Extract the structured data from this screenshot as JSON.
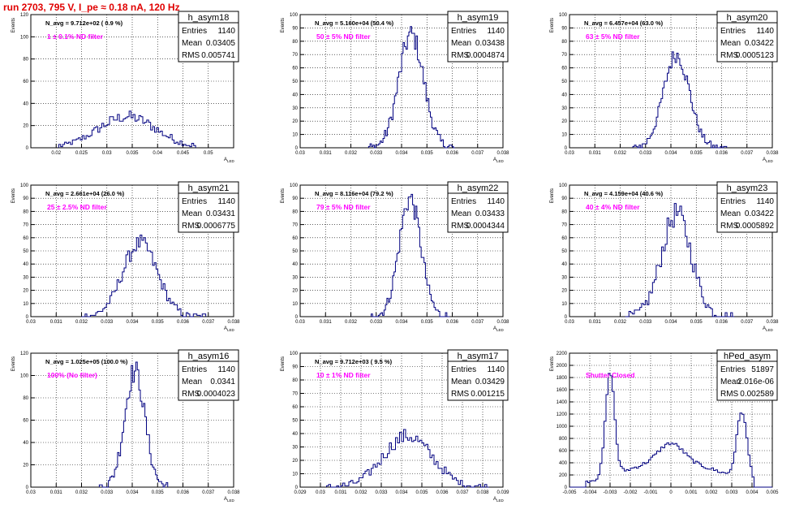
{
  "title": "run 2703,   795 V, I_pe ≈ 0.18 nA, 120 Hz",
  "stats_labels": {
    "entries": "Entries",
    "mean": "Mean",
    "rms": "RMS"
  },
  "hist_color": "#000080",
  "annot_color": "#000000",
  "filter_color": "#ff00ff",
  "chart_data": [
    {
      "type": "bar",
      "name": "h_asym18",
      "ylabel": "Events",
      "xlabel": "A_LED",
      "annotation": "N_avg = 9.712e+02 ( 0.9 %)",
      "filter": "1 ± 0.1% ND filter",
      "entries": "1140",
      "mean": "0.03405",
      "rms": "0.005741",
      "xlim": [
        0.015,
        0.055
      ],
      "ylim": [
        0,
        120
      ],
      "xticks": [
        "0.02",
        "0.025",
        "0.03",
        "0.035",
        "0.04",
        "0.045",
        "0.05"
      ],
      "yticks": [
        "0",
        "20",
        "40",
        "60",
        "80",
        "100",
        "120"
      ],
      "gauss": {
        "mu": 0.034,
        "sigma": 0.0057,
        "peak": 28,
        "noise": 5,
        "lo": 0.0205,
        "hi": 0.0475,
        "bins": 70
      }
    },
    {
      "type": "bar",
      "name": "h_asym19",
      "ylabel": "Events",
      "xlabel": "A_LED",
      "annotation": "N_avg = 5.160e+04 (50.4 %)",
      "filter": "50 ± 5% ND filter",
      "entries": "1140",
      "mean": "0.03438",
      "rms": "0.0004874",
      "xlim": [
        0.03,
        0.038
      ],
      "ylim": [
        0,
        100
      ],
      "xticks": [
        "0.03",
        "0.031",
        "0.032",
        "0.033",
        "0.034",
        "0.035",
        "0.036",
        "0.037",
        "0.038"
      ],
      "yticks": [
        "0",
        "10",
        "20",
        "30",
        "40",
        "50",
        "60",
        "70",
        "80",
        "90",
        "100"
      ],
      "gauss": {
        "mu": 0.03438,
        "sigma": 0.00049,
        "peak": 85,
        "noise": 8,
        "lo": 0.0327,
        "hi": 0.0361,
        "bins": 60
      }
    },
    {
      "type": "bar",
      "name": "h_asym20",
      "ylabel": "Events",
      "xlabel": "A_LED",
      "annotation": "N_avg = 6.457e+04 (63.0 %)",
      "filter": "63 ± 5% ND filter",
      "entries": "1140",
      "mean": "0.03422",
      "rms": "0.0005123",
      "xlim": [
        0.03,
        0.038
      ],
      "ylim": [
        0,
        100
      ],
      "xticks": [
        "0.03",
        "0.031",
        "0.032",
        "0.033",
        "0.034",
        "0.035",
        "0.036",
        "0.037",
        "0.038"
      ],
      "yticks": [
        "0",
        "10",
        "20",
        "30",
        "40",
        "50",
        "60",
        "70",
        "80",
        "90",
        "100"
      ],
      "gauss": {
        "mu": 0.03422,
        "sigma": 0.00051,
        "peak": 70,
        "noise": 6,
        "lo": 0.0325,
        "hi": 0.0362,
        "bins": 60
      }
    },
    {
      "type": "bar",
      "name": "h_asym21",
      "ylabel": "Events",
      "xlabel": "A_LED",
      "annotation": "N_avg = 2.661e+04 (26.0 %)",
      "filter": "25 ± 2.5% ND filter",
      "entries": "1140",
      "mean": "0.03431",
      "rms": "0.0006775",
      "xlim": [
        0.03,
        0.038
      ],
      "ylim": [
        0,
        100
      ],
      "xticks": [
        "0.03",
        "0.031",
        "0.032",
        "0.033",
        "0.034",
        "0.035",
        "0.036",
        "0.037",
        "0.038"
      ],
      "yticks": [
        "0",
        "10",
        "20",
        "30",
        "40",
        "50",
        "60",
        "70",
        "80",
        "90",
        "100"
      ],
      "gauss": {
        "mu": 0.03431,
        "sigma": 0.00068,
        "peak": 56,
        "noise": 6,
        "lo": 0.032,
        "hi": 0.0369,
        "bins": 70
      }
    },
    {
      "type": "bar",
      "name": "h_asym22",
      "ylabel": "Events",
      "xlabel": "A_LED",
      "annotation": "N_avg = 8.116e+04 (79.2 %)",
      "filter": "79 ± 5% ND filter",
      "entries": "1140",
      "mean": "0.03433",
      "rms": "0.0004344",
      "xlim": [
        0.03,
        0.038
      ],
      "ylim": [
        0,
        100
      ],
      "xticks": [
        "0.03",
        "0.031",
        "0.032",
        "0.033",
        "0.034",
        "0.035",
        "0.036",
        "0.037",
        "0.038"
      ],
      "yticks": [
        "0",
        "10",
        "20",
        "30",
        "40",
        "50",
        "60",
        "70",
        "80",
        "90",
        "100"
      ],
      "gauss": {
        "mu": 0.03433,
        "sigma": 0.00043,
        "peak": 90,
        "noise": 8,
        "lo": 0.0328,
        "hi": 0.0359,
        "bins": 55
      }
    },
    {
      "type": "bar",
      "name": "h_asym23",
      "ylabel": "Events",
      "xlabel": "A_LED",
      "annotation": "N_avg = 4.159e+04 (40.6 %)",
      "filter": "40 ± 4% ND filter",
      "entries": "1140",
      "mean": "0.03422",
      "rms": "0.0005892",
      "xlim": [
        0.03,
        0.038
      ],
      "ylim": [
        0,
        100
      ],
      "xticks": [
        "0.03",
        "0.031",
        "0.032",
        "0.033",
        "0.034",
        "0.035",
        "0.036",
        "0.037",
        "0.038"
      ],
      "yticks": [
        "0",
        "10",
        "20",
        "30",
        "40",
        "50",
        "60",
        "70",
        "80",
        "90",
        "100"
      ],
      "gauss": {
        "mu": 0.03422,
        "sigma": 0.00059,
        "peak": 78,
        "noise": 9,
        "lo": 0.0322,
        "hi": 0.0365,
        "bins": 60
      }
    },
    {
      "type": "bar",
      "name": "h_asym16",
      "ylabel": "Events",
      "xlabel": "A_LED",
      "annotation": "N_avg = 1.025e+05 (100.0 %)",
      "filter": "100% (No filter)",
      "entries": "1140",
      "mean": "0.0341",
      "rms": "0.0004023",
      "xlim": [
        0.03,
        0.038
      ],
      "ylim": [
        0,
        120
      ],
      "xticks": [
        "0.03",
        "0.031",
        "0.032",
        "0.033",
        "0.034",
        "0.035",
        "0.036",
        "0.037",
        "0.038"
      ],
      "yticks": [
        "0",
        "20",
        "40",
        "60",
        "80",
        "100",
        "120"
      ],
      "gauss": {
        "mu": 0.0341,
        "sigma": 0.0004,
        "peak": 104,
        "noise": 10,
        "lo": 0.0327,
        "hi": 0.0354,
        "bins": 45
      }
    },
    {
      "type": "bar",
      "name": "h_asym17",
      "ylabel": "Events",
      "xlabel": "A_LED",
      "annotation": "N_avg = 9.712e+03 ( 9.5 %)",
      "filter": "10 ± 1% ND filter",
      "entries": "1140",
      "mean": "0.03429",
      "rms": "0.001215",
      "xlim": [
        0.029,
        0.039
      ],
      "ylim": [
        0,
        100
      ],
      "xticks": [
        "0.029",
        "0.03",
        "0.031",
        "0.032",
        "0.033",
        "0.034",
        "0.035",
        "0.036",
        "0.037",
        "0.038",
        "0.039"
      ],
      "yticks": [
        "0",
        "10",
        "20",
        "30",
        "40",
        "50",
        "60",
        "70",
        "80",
        "90",
        "100"
      ],
      "gauss": {
        "mu": 0.03429,
        "sigma": 0.0012,
        "peak": 38,
        "noise": 5,
        "lo": 0.0303,
        "hi": 0.0383,
        "bins": 80
      }
    },
    {
      "type": "bar",
      "name": "hPed_asym",
      "ylabel": "Events",
      "xlabel": "",
      "annotation": "",
      "filter": "Shutter Closed",
      "entries": "51897",
      "mean": "2.016e-06",
      "rms": "0.002589",
      "xlim": [
        -0.005,
        0.005
      ],
      "ylim": [
        0,
        2200
      ],
      "xticks": [
        "-0.005",
        "-0.004",
        "-0.003",
        "-0.002",
        "-0.001",
        "0",
        "0.001",
        "0.002",
        "0.003",
        "0.004",
        "0.005"
      ],
      "yticks": [
        "0",
        "200",
        "400",
        "600",
        "800",
        "1000",
        "1200",
        "1400",
        "1600",
        "1800",
        "2000",
        "2200"
      ],
      "ped": true
    }
  ]
}
